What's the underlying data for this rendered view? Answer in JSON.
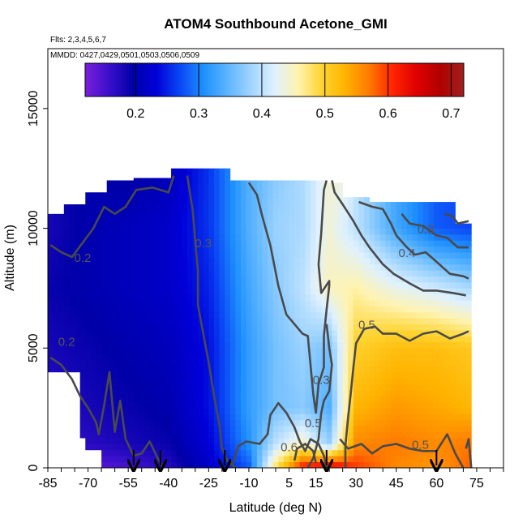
{
  "chart_data": {
    "type": "heatmap",
    "title": "ATOM4 Southbound Acetone_GMI",
    "subtitle_lines": [
      "Flts: 2,3,4,5,6,7",
      "MMDD: 0427,0429,0501,0503,0506,0509"
    ],
    "xlabel": "Latitude (deg N)",
    "ylabel": "Altitude (m)",
    "xlim": [
      -85,
      85
    ],
    "ylim": [
      0,
      17500
    ],
    "x_ticks": [
      -85,
      -70,
      -55,
      -40,
      -25,
      -10,
      5,
      15,
      30,
      45,
      60,
      75
    ],
    "y_ticks": [
      0,
      5000,
      10000,
      15000
    ],
    "colorbar": {
      "min": 0.12,
      "max": 0.72,
      "ticks": [
        0.2,
        0.3,
        0.4,
        0.5,
        0.6,
        0.7
      ],
      "tick_labels": [
        "0.2",
        "0.3",
        "0.4",
        "0.5",
        "0.6",
        "0.7"
      ],
      "colors": [
        "#7b1fd9",
        "#3b10cc",
        "#0000a8",
        "#0000d8",
        "#0a46f5",
        "#1e90ff",
        "#5ab4ff",
        "#9fd4ff",
        "#dff1ff",
        "#fff3b0",
        "#ffd430",
        "#ffb300",
        "#ff7a00",
        "#ff2400",
        "#e00000",
        "#b00000",
        "#a02020"
      ]
    },
    "field": {
      "latitudes": [
        -85,
        -70,
        -55,
        -40,
        -25,
        -10,
        0,
        10,
        20,
        30,
        45,
        60,
        72
      ],
      "altitudes": [
        0,
        1000,
        2500,
        5000,
        7500,
        10000,
        12500
      ],
      "values": [
        [
          0.14,
          0.14,
          0.15,
          0.17,
          0.22,
          0.28,
          0.48,
          0.62,
          0.65,
          0.6,
          0.56,
          0.55,
          0.58
        ],
        [
          0.16,
          0.17,
          0.18,
          0.19,
          0.23,
          0.31,
          0.4,
          0.45,
          0.38,
          0.56,
          0.57,
          0.56,
          0.57
        ],
        [
          0.17,
          0.18,
          0.19,
          0.2,
          0.24,
          0.32,
          0.36,
          0.37,
          0.34,
          0.53,
          0.55,
          0.54,
          0.53
        ],
        [
          0.18,
          0.19,
          0.2,
          0.21,
          0.24,
          0.32,
          0.36,
          0.38,
          0.36,
          0.5,
          0.52,
          0.52,
          0.51
        ],
        [
          0.19,
          0.2,
          0.21,
          0.22,
          0.25,
          0.33,
          0.37,
          0.4,
          0.45,
          0.46,
          0.43,
          0.41,
          0.39
        ],
        [
          0.18,
          0.2,
          0.21,
          0.22,
          0.26,
          0.34,
          0.38,
          0.39,
          0.44,
          0.4,
          0.33,
          0.28,
          0.27
        ],
        [
          null,
          null,
          0.19,
          0.21,
          0.26,
          0.34,
          0.37,
          0.39,
          0.44,
          null,
          null,
          null,
          null
        ]
      ]
    },
    "contour_labels": [
      {
        "text": "0.2",
        "x": -72,
        "y": 8600
      },
      {
        "text": "0.2",
        "x": -78,
        "y": 5100
      },
      {
        "text": "0.3",
        "x": -27,
        "y": 9200
      },
      {
        "text": "0.3",
        "x": 17,
        "y": 3500
      },
      {
        "text": "0.3",
        "x": 56,
        "y": 9800
      },
      {
        "text": "0.4",
        "x": 49,
        "y": 8800
      },
      {
        "text": "0.5",
        "x": 34,
        "y": 5800
      },
      {
        "text": "0.5",
        "x": 54,
        "y": 800
      },
      {
        "text": "0.5",
        "x": 14,
        "y": 1700
      },
      {
        "text": "0.6",
        "x": 5,
        "y": 700
      }
    ],
    "flight_arrows_lat": [
      -53,
      -43,
      -19,
      19,
      60
    ]
  }
}
